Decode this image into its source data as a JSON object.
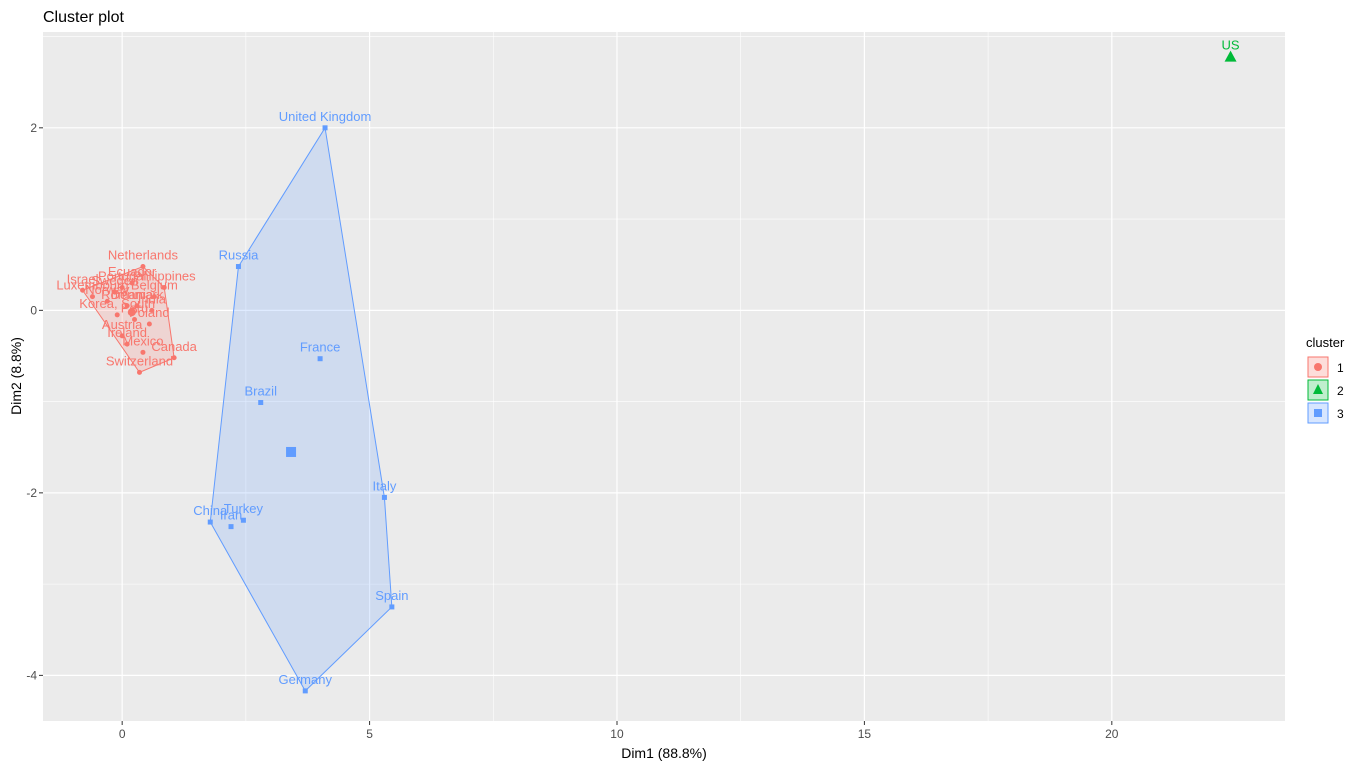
{
  "chart_data": {
    "type": "scatter",
    "title": "Cluster plot",
    "xlabel": "Dim1 (88.8%)",
    "ylabel": "Dim2 (8.8%)",
    "xlim": [
      -1.6,
      23.5
    ],
    "ylim": [
      -4.5,
      3.05
    ],
    "xticks": [
      0,
      5,
      10,
      15,
      20
    ],
    "yticks": [
      -4,
      -2,
      0,
      2
    ],
    "grid": true,
    "legend_title": "cluster",
    "legend_position": "right",
    "colors": {
      "1": "#F8766D",
      "2": "#00BA38",
      "3": "#619CFF"
    },
    "clusters": [
      {
        "name": "1",
        "points": [
          {
            "label": "Netherlands",
            "x": 0.42,
            "y": 0.48
          },
          {
            "label": "Canada",
            "x": 1.05,
            "y": -0.52
          },
          {
            "label": "Mexico",
            "x": 0.42,
            "y": -0.46
          },
          {
            "label": "Ireland",
            "x": 0.1,
            "y": -0.37
          },
          {
            "label": "Austria",
            "x": 0.0,
            "y": -0.28
          },
          {
            "label": "Switzerland",
            "x": 0.35,
            "y": -0.68
          },
          {
            "label": "Korea, South",
            "x": -0.1,
            "y": -0.05
          },
          {
            "label": "Portugal",
            "x": 0.0,
            "y": 0.25
          },
          {
            "label": "Sweden",
            "x": -0.15,
            "y": 0.2
          },
          {
            "label": "Belgium",
            "x": 0.65,
            "y": 0.15
          },
          {
            "label": "Philippines",
            "x": 0.85,
            "y": 0.25
          },
          {
            "label": "Luxembourg",
            "x": -0.6,
            "y": 0.15
          },
          {
            "label": "Israel",
            "x": -0.8,
            "y": 0.22
          },
          {
            "label": "Denmark",
            "x": 0.3,
            "y": 0.05
          },
          {
            "label": "Norway",
            "x": -0.3,
            "y": 0.1
          },
          {
            "label": "India",
            "x": 0.6,
            "y": 0.0
          },
          {
            "label": "Peru",
            "x": 0.25,
            "y": -0.1
          },
          {
            "label": "Ecuador",
            "x": 0.2,
            "y": 0.3
          },
          {
            "label": "Poland",
            "x": 0.55,
            "y": -0.15
          },
          {
            "label": "Romania",
            "x": 0.1,
            "y": 0.05
          }
        ]
      },
      {
        "name": "2",
        "points": [
          {
            "label": "US",
            "x": 22.4,
            "y": 2.78
          }
        ]
      },
      {
        "name": "3",
        "points": [
          {
            "label": "United Kingdom",
            "x": 4.1,
            "y": 2.0
          },
          {
            "label": "Russia",
            "x": 2.35,
            "y": 0.48
          },
          {
            "label": "France",
            "x": 4.0,
            "y": -0.53
          },
          {
            "label": "Brazil",
            "x": 2.8,
            "y": -1.01
          },
          {
            "label": "Italy",
            "x": 5.3,
            "y": -2.05
          },
          {
            "label": "China",
            "x": 1.78,
            "y": -2.32
          },
          {
            "label": "Turkey",
            "x": 2.45,
            "y": -2.3
          },
          {
            "label": "Iran",
            "x": 2.2,
            "y": -2.37
          },
          {
            "label": "Spain",
            "x": 5.45,
            "y": -3.25
          },
          {
            "label": "Germany",
            "x": 3.7,
            "y": -4.17
          }
        ]
      }
    ]
  }
}
